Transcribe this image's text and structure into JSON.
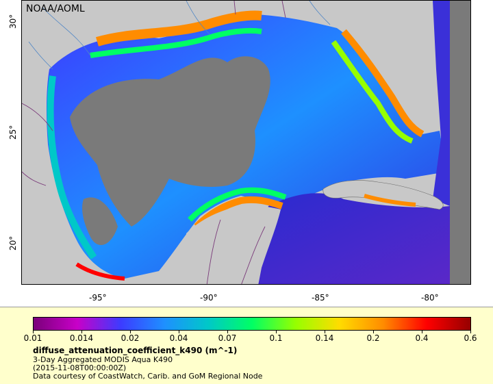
{
  "map": {
    "credit": "NOAA/AOML",
    "lon_labels": [
      "-95°",
      "-90°",
      "-85°",
      "-80°"
    ],
    "lat_labels": [
      "30°",
      "25°",
      "20°"
    ]
  },
  "legend": {
    "colorbar_labels": [
      "0.01",
      "0.014",
      "0.02",
      "0.04",
      "0.07",
      "0.1",
      "0.14",
      "0.2",
      "0.4",
      "0.6"
    ],
    "variable": "diffuse_attenuation_coefficient_k490 (m^-1)",
    "line1": "3-Day Aggregated MODIS Aqua K490",
    "line2": "(2015-11-08T00:00:00Z)",
    "line3": "Data courtesy of CoastWatch, Carib. and GoM Regional Node"
  },
  "colors": {
    "land": "#c8c8c8",
    "cloud": "#7a7a7a",
    "scale": [
      "#7a007a",
      "#c800c8",
      "#3c3cff",
      "#1e90ff",
      "#00c8c8",
      "#00ff64",
      "#96ff00",
      "#ffdc00",
      "#ff8c00",
      "#ff0000",
      "#960000"
    ]
  }
}
